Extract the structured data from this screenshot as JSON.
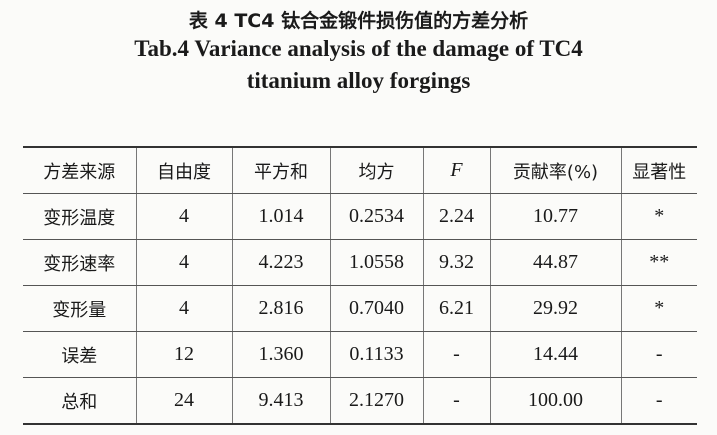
{
  "caption": {
    "zh": "表 4  TC4 钛合金锻件损伤值的方差分析",
    "en_line1": "Tab.4  Variance analysis of the damage of TC4",
    "en_line2": "titanium alloy forgings"
  },
  "table": {
    "headers": [
      "方差来源",
      "自由度",
      "平方和",
      "均方",
      "F",
      "贡献率(%)",
      "显著性"
    ],
    "rows": [
      [
        "变形温度",
        "4",
        "1.014",
        "0.2534",
        "2.24",
        "10.77",
        "*"
      ],
      [
        "变形速率",
        "4",
        "4.223",
        "1.0558",
        "9.32",
        "44.87",
        "**"
      ],
      [
        "变形量",
        "4",
        "2.816",
        "0.7040",
        "6.21",
        "29.92",
        "*"
      ],
      [
        "误差",
        "12",
        "1.360",
        "0.1133",
        "-",
        "14.44",
        "-"
      ],
      [
        "总和",
        "24",
        "9.413",
        "2.1270",
        "-",
        "100.00",
        "-"
      ]
    ]
  }
}
